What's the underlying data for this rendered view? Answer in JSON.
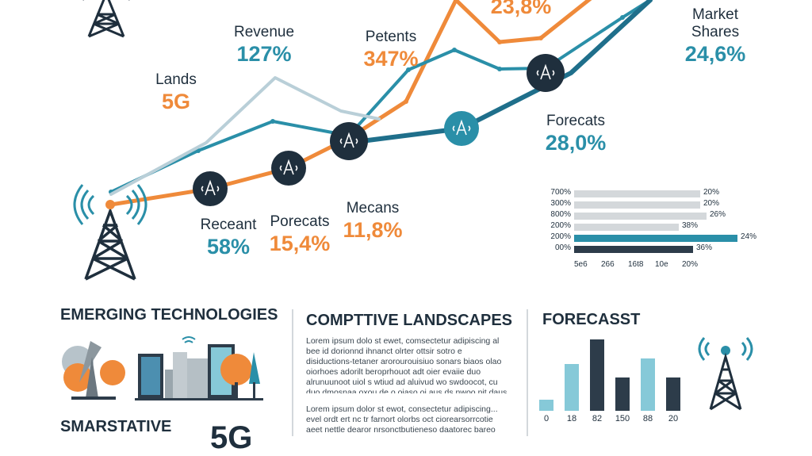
{
  "labels": {
    "lands": {
      "name": "Lands",
      "value": "5G"
    },
    "revenue": {
      "name": "Revenue",
      "value": "127%"
    },
    "patents": {
      "name": "Petents",
      "value": "347%"
    },
    "top_partial": {
      "value": "23,8%"
    },
    "market_shares": {
      "name_line1": "Market",
      "name_line2": "Shares",
      "value": "24,6%"
    },
    "forecasts": {
      "name": "Forecats",
      "value": "28,0%"
    },
    "recent": {
      "name": "Receant",
      "value": "58%"
    },
    "porecats": {
      "name": "Porecats",
      "value": "15,4%"
    },
    "mecans": {
      "name": "Mecans",
      "value": "11,8%"
    }
  },
  "chart_data": [
    {
      "type": "line",
      "series": [
        {
          "color": "#ef8a3a",
          "values": [
            [
              140,
              258
            ],
            [
              265,
              238
            ],
            [
              364,
              212
            ],
            [
              442,
              173
            ],
            [
              512,
              128
            ],
            [
              575,
              0
            ],
            [
              630,
              53
            ],
            [
              682,
              48
            ],
            [
              755,
              -10
            ]
          ]
        },
        {
          "color": "#2a8fa8",
          "values": [
            [
              140,
              242
            ],
            [
              250,
              190
            ],
            [
              344,
              153
            ],
            [
              440,
              171
            ],
            [
              515,
              88
            ],
            [
              573,
              63
            ],
            [
              630,
              87
            ],
            [
              688,
              86
            ],
            [
              785,
              22
            ],
            [
              820,
              0
            ]
          ]
        },
        {
          "color": "#1f6f8b",
          "values": [
            [
              440,
              180
            ],
            [
              582,
              162
            ],
            [
              720,
              92
            ],
            [
              820,
              0
            ]
          ]
        },
        {
          "color": "#b9cfd8",
          "values": [
            [
              140,
              245
            ],
            [
              260,
              180
            ],
            [
              347,
              98
            ],
            [
              430,
              140
            ],
            [
              478,
              150
            ]
          ]
        }
      ]
    },
    {
      "type": "bar",
      "orientation": "horizontal",
      "rows": [
        {
          "label": "700%",
          "value_label": "20%",
          "fraction": 0.77
        },
        {
          "label": "300%",
          "value_label": "20%",
          "fraction": 0.77
        },
        {
          "label": "800%",
          "value_label": "26%",
          "fraction": 0.81
        },
        {
          "label": "200%",
          "value_label": "38%",
          "fraction": 0.64
        },
        {
          "label": "200%",
          "value_label": "24%",
          "fraction": 1.0,
          "highlight": "#2a8fa8"
        },
        {
          "label": "00%",
          "value_label": "36%",
          "fraction": 0.73,
          "highlight": "#2d3c4a"
        }
      ],
      "x_tick_labels": [
        "5e6",
        "266",
        "16t8",
        "10e",
        "20%"
      ]
    },
    {
      "type": "bar",
      "title": "FORECASST",
      "categories": [
        "0",
        "18",
        "82",
        "150",
        "88",
        "20"
      ],
      "values": [
        18,
        78,
        118,
        55,
        87,
        55
      ],
      "colors": [
        "#86c9d8",
        "#86c9d8",
        "#2d3c4a",
        "#2d3c4a",
        "#86c9d8",
        "#2d3c4a"
      ]
    }
  ],
  "sections": {
    "emerging": {
      "title": "EMERGING TECHNOLOGIES"
    },
    "smartative": {
      "title": "SMARSTATIVE",
      "big_partial": "5G"
    },
    "competitive": {
      "title": "COMPTTIVE LANDSCAPES",
      "para1": "Lorem ipsum dolo st ewet, comsectetur adipiscing al bee id dorionnd ihnanct olrter ottsir sotro e disiductions-tetaner arorourouisiuo sonars biaos olao oiorhoes adorilt beroprhouot adt oier evaiie duo alrunuunoot uiol s wtiud ad aluivud wo swdoocot, cu duo dmosnaa oxou de o oiaso oi aus ds nwoo nit daus e ion donbre oenes anoinee ro mottorrorosnbaiomscnd ciorneeuce.",
      "para2": "Lorem ipsum dolor st ewot, consectetur adipiscing... evel ordt ert nc tr farnort olorbs oct ciorearsorrcotie aeet nettle dearor nrsonctbutieneso daatorec bareo seccpanede, unut d ca ser cant oan nreuiteeaeaiadi ossusisaroscoorieo oeeoto oaso ocaee sesonsdaseaibnfa"
    }
  },
  "colors": {
    "orange": "#ef8a3a",
    "teal": "#2a8fa8",
    "navy": "#1f2f3d",
    "light_teal": "#86c9d8"
  },
  "icons": [
    "cell-tower-icon",
    "antenna-node-icon",
    "satellite-dish-icon",
    "building-icon",
    "tree-icon",
    "phone-icon"
  ]
}
